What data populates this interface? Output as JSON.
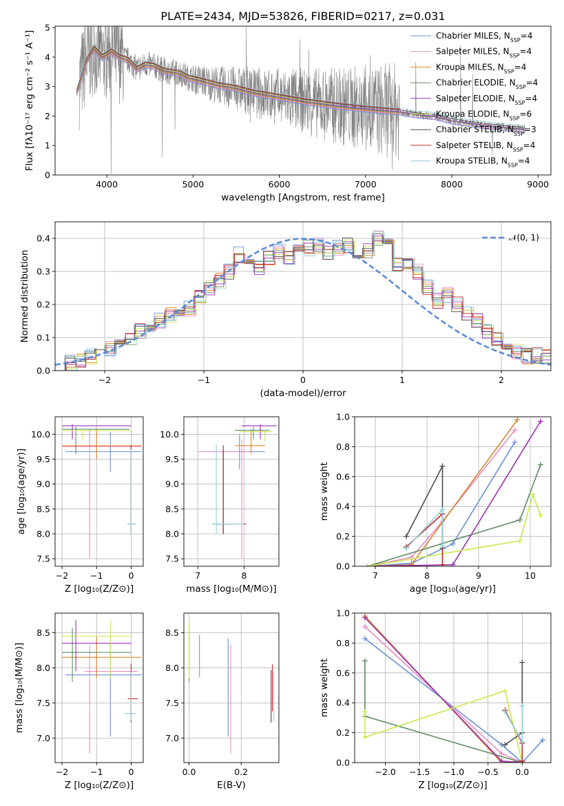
{
  "colors": [
    "#6a8fd8",
    "#e88cc0",
    "#d9822b",
    "#5e8a63",
    "#9a2fb0",
    "#c9e84a",
    "#4b4b4b",
    "#c0272d",
    "#8ed1d6"
  ],
  "chart_data": [
    {
      "id": "spectrum",
      "type": "line",
      "title": "PLATE=2434, MJD=53826, FIBERID=0217, z=0.031",
      "xlabel": "wavelength [Angstrom, rest frame]",
      "ylabel": "Flux [fλ10⁻¹⁷ erg cm⁻² s⁻¹ A⁻¹]",
      "xlim": [
        3400,
        9150
      ],
      "ylim": [
        0,
        5.05
      ],
      "xticks": [
        "4000",
        "5000",
        "6000",
        "7000",
        "8000",
        "9000"
      ],
      "yticks": [
        "0",
        "1",
        "2",
        "3",
        "4",
        "5"
      ],
      "series": [
        {
          "name": "Chabrier MILES, N",
          "sub": "SSP",
          "n": "=4"
        },
        {
          "name": "Salpeter MILES, N",
          "sub": "SSP",
          "n": "=4"
        },
        {
          "name": "Kroupa MILES, N",
          "sub": "SSP",
          "n": "=4"
        },
        {
          "name": "Chabrier ELODIE, N",
          "sub": "SSP",
          "n": "=4"
        },
        {
          "name": "Salpeter ELODIE, N",
          "sub": "SSP",
          "n": "=4"
        },
        {
          "name": "Kroupa ELODIE, N",
          "sub": "SSP",
          "n": "=6"
        },
        {
          "name": "Chabrier STELIB, N",
          "sub": "SSP",
          "n": "=3"
        },
        {
          "name": "Salpeter STELIB, N",
          "sub": "SSP",
          "n": "=4"
        },
        {
          "name": "Kroupa STELIB, N",
          "sub": "SSP",
          "n": "=4"
        }
      ],
      "model_wavelength": [
        3650,
        3750,
        3850,
        3950,
        4050,
        4150,
        4250,
        4350,
        4450,
        4550,
        4650,
        4750,
        4850,
        4950,
        5100,
        5300,
        5500,
        5700,
        6000,
        6300,
        6600,
        6900,
        7200,
        7400,
        7600,
        7800,
        8000,
        8300,
        8600,
        8850
      ],
      "model_flux": [
        2.8,
        3.8,
        4.3,
        4.0,
        4.2,
        4.0,
        3.9,
        3.6,
        3.75,
        3.7,
        3.55,
        3.5,
        3.45,
        3.3,
        3.2,
        3.05,
        2.95,
        2.8,
        2.65,
        2.5,
        2.38,
        2.28,
        2.2,
        2.15,
        2.05,
        2.0,
        1.85,
        1.72,
        1.62,
        1.55
      ]
    },
    {
      "id": "residuals",
      "type": "histogram",
      "xlabel": "(data-model)/error",
      "ylabel": "Normed distribution",
      "xlim": [
        -2.5,
        2.5
      ],
      "ylim": [
        0,
        0.45
      ],
      "xticks": [
        "−2",
        "−1",
        "0",
        "1",
        "2"
      ],
      "yticks": [
        "0.0",
        "0.1",
        "0.2",
        "0.3",
        "0.4"
      ],
      "legend": "𝒩(0, 1)",
      "bin_width": 0.1,
      "bin_start": -2.5,
      "values": [
        0.025,
        0.025,
        0.03,
        0.045,
        0.055,
        0.065,
        0.085,
        0.1,
        0.12,
        0.135,
        0.15,
        0.17,
        0.17,
        0.19,
        0.22,
        0.25,
        0.27,
        0.3,
        0.35,
        0.33,
        0.31,
        0.34,
        0.36,
        0.34,
        0.36,
        0.37,
        0.38,
        0.36,
        0.37,
        0.38,
        0.35,
        0.36,
        0.4,
        0.39,
        0.32,
        0.33,
        0.3,
        0.25,
        0.21,
        0.23,
        0.2,
        0.17,
        0.15,
        0.12,
        0.09,
        0.08,
        0.06,
        0.045,
        0.045,
        0.04
      ]
    },
    {
      "id": "age-vs-Z",
      "type": "errorbar",
      "xlabel": "Z [log₁₀(Z/Z⊙)]",
      "ylabel": "age  [log₁₀(age/yr)]",
      "xlim": [
        -2.2,
        0.35
      ],
      "ylim": [
        7.35,
        10.35
      ],
      "xticks": [
        "−2",
        "−1",
        "0"
      ],
      "yticks": [
        "7.5",
        "8.0",
        "8.5",
        "9.0",
        "9.5",
        "10.0"
      ],
      "points": [
        {
          "x": -0.6,
          "y": 9.65,
          "xlo": -1.9,
          "xhi": 0.3,
          "ylo": 9.25,
          "yhi": 10.05
        },
        {
          "x": -1.2,
          "y": 9.75,
          "xlo": -2.0,
          "xhi": 0.3,
          "ylo": 7.5,
          "yhi": 10.1
        },
        {
          "x": -1.0,
          "y": 9.77,
          "xlo": -2.0,
          "xhi": 0.3,
          "ylo": 9.5,
          "yhi": 10.1
        },
        {
          "x": -1.6,
          "y": 10.1,
          "xlo": -2.0,
          "xhi": -0.05,
          "ylo": 9.6,
          "yhi": 10.15
        },
        {
          "x": -1.7,
          "y": 10.17,
          "xlo": -2.0,
          "xhi": 0.0,
          "ylo": 9.9,
          "yhi": 10.2
        },
        {
          "x": -1.4,
          "y": 10.07,
          "xlo": -2.0,
          "xhi": 0.0,
          "ylo": 9.9,
          "yhi": 10.1
        },
        {
          "x": 0.0,
          "y": 8.2,
          "xlo": -0.1,
          "xhi": 0.1,
          "ylo": 8.0,
          "yhi": 9.78
        },
        {
          "x": 0.0,
          "y": 8.2,
          "xlo": -0.1,
          "xhi": 0.1,
          "ylo": 8.0,
          "yhi": 9.78
        },
        {
          "x": 0.0,
          "y": 8.2,
          "xlo": -0.1,
          "xhi": 0.15,
          "ylo": 8.0,
          "yhi": 9.7
        }
      ]
    },
    {
      "id": "age-vs-mass",
      "type": "errorbar",
      "xlabel": "mass [log₁₀(M/M⊙)]",
      "ylabel": "",
      "xlim": [
        6.7,
        8.75
      ],
      "ylim": [
        7.35,
        10.35
      ],
      "xticks": [
        "7",
        "8"
      ],
      "yticks": [
        "7.5",
        "8.0",
        "8.5",
        "9.0",
        "9.5",
        "10.0"
      ],
      "points": [
        {
          "x": 7.9,
          "y": 9.65,
          "xlo": 7.3,
          "xhi": 8.45,
          "ylo": 9.3,
          "yhi": 10.0
        },
        {
          "x": 7.95,
          "y": 9.65,
          "xlo": 7.0,
          "xhi": 8.1,
          "ylo": 7.5,
          "yhi": 9.9
        },
        {
          "x": 8.15,
          "y": 9.77,
          "xlo": 7.8,
          "xhi": 8.45,
          "ylo": 9.6,
          "yhi": 10.1
        },
        {
          "x": 8.2,
          "y": 10.08,
          "xlo": 7.8,
          "xhi": 8.55,
          "ylo": 9.9,
          "yhi": 10.15
        },
        {
          "x": 8.35,
          "y": 10.17,
          "xlo": 7.95,
          "xhi": 8.7,
          "ylo": 9.9,
          "yhi": 10.2
        },
        {
          "x": 8.45,
          "y": 10.05,
          "xlo": 7.9,
          "xhi": 8.6,
          "ylo": 9.85,
          "yhi": 10.1
        },
        {
          "x": 7.55,
          "y": 8.2,
          "xlo": 7.3,
          "xhi": 7.7,
          "ylo": 8.0,
          "yhi": 9.78
        },
        {
          "x": 7.55,
          "y": 8.2,
          "xlo": 7.4,
          "xhi": 8.05,
          "ylo": 8.0,
          "yhi": 9.7
        },
        {
          "x": 7.4,
          "y": 8.2,
          "xlo": 7.3,
          "xhi": 8.0,
          "ylo": 8.0,
          "yhi": 9.8
        }
      ]
    },
    {
      "id": "weight-vs-age",
      "type": "line",
      "xlabel": "age  [log₁₀(age/yr)]",
      "ylabel": "mass weight",
      "xlim": [
        6.6,
        10.4
      ],
      "ylim": [
        0,
        1.0
      ],
      "xticks": [
        "7",
        "8",
        "9",
        "10"
      ],
      "yticks": [
        "0.0",
        "0.2",
        "0.4",
        "0.6",
        "0.8",
        "1.0"
      ],
      "series": [
        {
          "x": [
            6.85,
            7.7,
            8.5,
            9.7
          ],
          "y": [
            0.0,
            0.02,
            0.15,
            0.83
          ]
        },
        {
          "x": [
            6.85,
            7.7,
            8.3,
            9.7
          ],
          "y": [
            0.0,
            0.06,
            0.3,
            0.91
          ]
        },
        {
          "x": [
            6.85,
            7.7,
            9.75
          ],
          "y": [
            0.0,
            0.01,
            0.98
          ]
        },
        {
          "x": [
            6.85,
            9.8,
            10.2
          ],
          "y": [
            0.0,
            0.31,
            0.68
          ]
        },
        {
          "x": [
            6.85,
            8.5,
            10.2
          ],
          "y": [
            0.0,
            0.01,
            0.97
          ]
        },
        {
          "x": [
            6.85,
            9.8,
            10.05,
            10.2
          ],
          "y": [
            0.0,
            0.17,
            0.48,
            0.34
          ]
        },
        {
          "x": [
            7.6,
            8.3,
            8.3
          ],
          "y": [
            0.2,
            0.67,
            0.12
          ]
        },
        {
          "x": [
            7.6,
            8.3,
            8.3
          ],
          "y": [
            0.13,
            0.35,
            0.01
          ]
        },
        {
          "x": [
            7.6,
            8.3,
            8.3
          ],
          "y": [
            0.12,
            0.38,
            0.14
          ]
        }
      ]
    },
    {
      "id": "mass-vs-Z",
      "type": "errorbar",
      "xlabel": "Z [log₁₀(Z/Z⊙)]",
      "ylabel": "mass [log₁₀(M/M⊙)]",
      "xlim": [
        -2.2,
        0.35
      ],
      "ylim": [
        6.65,
        8.78
      ],
      "xticks": [
        "−2",
        "−1",
        "0"
      ],
      "yticks": [
        "7.0",
        "7.5",
        "8.0",
        "8.5"
      ],
      "points": [
        {
          "x": -0.6,
          "y": 7.9,
          "xlo": -1.9,
          "xhi": 0.3,
          "ylo": 7.02,
          "yhi": 8.4
        },
        {
          "x": -1.2,
          "y": 7.95,
          "xlo": -1.35,
          "xhi": 0.2,
          "ylo": 6.78,
          "yhi": 8.32
        },
        {
          "x": -1.0,
          "y": 8.15,
          "xlo": -2.0,
          "xhi": 0.3,
          "ylo": 7.85,
          "yhi": 8.45
        },
        {
          "x": -1.7,
          "y": 8.22,
          "xlo": -2.0,
          "xhi": 0.0,
          "ylo": 7.8,
          "yhi": 8.57
        },
        {
          "x": -1.6,
          "y": 8.35,
          "xlo": -2.0,
          "xhi": 0.0,
          "ylo": 7.95,
          "yhi": 8.68
        },
        {
          "x": -0.6,
          "y": 8.45,
          "xlo": -2.0,
          "xhi": 0.0,
          "ylo": 7.85,
          "yhi": 8.67
        },
        {
          "x": 0.0,
          "y": 7.35,
          "xlo": -0.05,
          "xhi": 0.05,
          "ylo": 7.22,
          "yhi": 7.95
        },
        {
          "x": 0.0,
          "y": 7.56,
          "xlo": -0.1,
          "xhi": 0.2,
          "ylo": 7.3,
          "yhi": 8.06
        },
        {
          "x": 0.0,
          "y": 7.35,
          "xlo": -0.2,
          "xhi": 0.15,
          "ylo": 7.25,
          "yhi": 7.95
        }
      ]
    },
    {
      "id": "mass-vs-ebv",
      "type": "errorbar",
      "xlabel": "E(B-V)",
      "ylabel": "",
      "xlim": [
        -0.02,
        0.345
      ],
      "ylim": [
        6.65,
        8.78
      ],
      "xticks": [
        "0.0",
        "0.2"
      ],
      "yticks": [
        "7.0",
        "7.5",
        "8.0",
        "8.5"
      ],
      "points": [
        {
          "x": 0.15,
          "y": 7.9,
          "ylo": 7.02,
          "yhi": 8.42
        },
        {
          "x": 0.16,
          "y": 7.9,
          "ylo": 6.78,
          "yhi": 8.33
        },
        {
          "x": 0.04,
          "y": 8.15,
          "ylo": 7.87,
          "yhi": 8.47
        },
        {
          "x": 0.0,
          "y": 8.2,
          "ylo": 7.8,
          "yhi": 8.57
        },
        {
          "x": 0.0,
          "y": 8.25,
          "ylo": 7.95,
          "yhi": 8.62
        },
        {
          "x": 0.0,
          "y": 8.3,
          "ylo": 7.85,
          "yhi": 8.67
        },
        {
          "x": 0.315,
          "y": 7.6,
          "ylo": 7.22,
          "yhi": 7.97
        },
        {
          "x": 0.32,
          "y": 7.6,
          "ylo": 7.38,
          "yhi": 8.05
        },
        {
          "x": 0.325,
          "y": 7.6,
          "ylo": 7.24,
          "yhi": 7.95
        }
      ]
    },
    {
      "id": "weight-vs-Z",
      "type": "line",
      "xlabel": "Z [log₁₀(Z/Z⊙)]",
      "ylabel": "mass weight",
      "xlim": [
        -2.45,
        0.42
      ],
      "ylim": [
        0,
        1.0
      ],
      "xticks": [
        "−2.0",
        "−1.5",
        "−1.0",
        "−0.5",
        "0.0"
      ],
      "yticks": [
        "0.0",
        "0.2",
        "0.4",
        "0.6",
        "0.8",
        "1.0"
      ],
      "series": [
        {
          "x": [
            -2.3,
            -0.3,
            0.0,
            0.3
          ],
          "y": [
            0.83,
            0.12,
            0.0,
            0.15
          ]
        },
        {
          "x": [
            -2.3,
            -0.3,
            0.0
          ],
          "y": [
            0.91,
            0.06,
            0.0
          ]
        },
        {
          "x": [
            -2.3,
            -0.3,
            0.0
          ],
          "y": [
            0.98,
            0.0,
            0.01
          ]
        },
        {
          "x": [
            -2.3,
            -2.3,
            0.0
          ],
          "y": [
            0.68,
            0.31,
            0.0
          ]
        },
        {
          "x": [
            -2.3,
            -0.3,
            0.0
          ],
          "y": [
            0.97,
            0.01,
            0.0
          ]
        },
        {
          "x": [
            -2.3,
            -2.3,
            -0.25,
            0.0
          ],
          "y": [
            0.34,
            0.17,
            0.48,
            0.0
          ]
        },
        {
          "x": [
            -0.25,
            0.0,
            0.0
          ],
          "y": [
            0.12,
            0.2,
            0.67
          ]
        },
        {
          "x": [
            -0.25,
            0.0,
            0.0
          ],
          "y": [
            0.35,
            0.13,
            0.01
          ]
        },
        {
          "x": [
            -0.25,
            0.0,
            0.0
          ],
          "y": [
            0.34,
            0.14,
            0.38
          ]
        }
      ]
    }
  ]
}
